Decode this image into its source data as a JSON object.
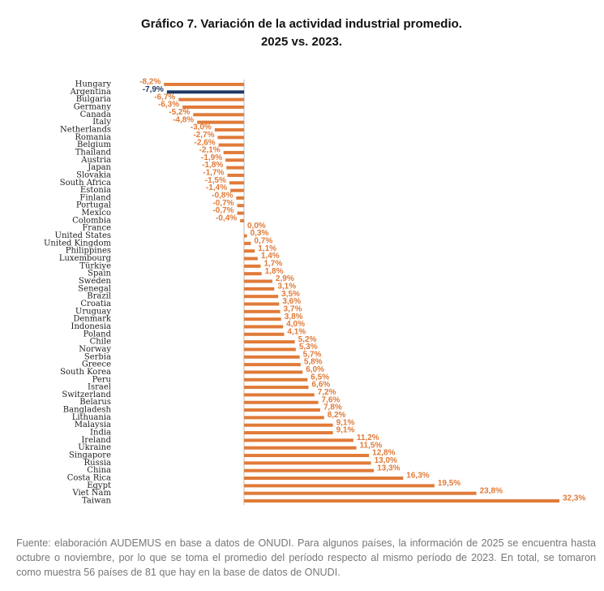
{
  "chart_data": {
    "type": "hbar",
    "title": "Gráfico 7. Variación de la actividad industrial promedio.",
    "subtitle": "2025 vs. 2023.",
    "categories": [
      "Hungary",
      "Argentina",
      "Bulgaria",
      "Germany",
      "Canada",
      "Italy",
      "Netherlands",
      "Romania",
      "Belgium",
      "Thailand",
      "Austria",
      "Japan",
      "Slovakia",
      "South Africa",
      "Estonia",
      "Finland",
      "Portugal",
      "Mexico",
      "Colombia",
      "France",
      "United States",
      "United Kingdom",
      "Philippines",
      "Luxembourg",
      "Türkiye",
      "Spain",
      "Sweden",
      "Senegal",
      "Brazil",
      "Croatia",
      "Uruguay",
      "Denmark",
      "Indonesia",
      "Poland",
      "Chile",
      "Norway",
      "Serbia",
      "Greece",
      "South Korea",
      "Peru",
      "Israel",
      "Switzerland",
      "Belarus",
      "Bangladesh",
      "Lithuania",
      "Malaysia",
      "India",
      "Ireland",
      "Ukraine",
      "Singapore",
      "Russia",
      "China",
      "Costa Rica",
      "Egypt",
      "Viet Nam",
      "Taiwan"
    ],
    "values": [
      -8.2,
      -7.9,
      -6.7,
      -6.3,
      -5.2,
      -4.8,
      -3.0,
      -2.7,
      -2.6,
      -2.1,
      -1.9,
      -1.8,
      -1.7,
      -1.5,
      -1.4,
      -0.8,
      -0.7,
      -0.7,
      -0.4,
      0.0,
      0.3,
      0.7,
      1.1,
      1.4,
      1.7,
      1.8,
      2.9,
      3.1,
      3.5,
      3.6,
      3.7,
      3.8,
      4.0,
      4.1,
      5.2,
      5.3,
      5.7,
      5.8,
      6.0,
      6.5,
      6.6,
      7.2,
      7.6,
      7.8,
      8.2,
      9.1,
      9.1,
      11.2,
      11.5,
      12.8,
      13.0,
      13.3,
      16.3,
      19.5,
      23.8,
      32.3
    ],
    "value_labels": [
      "-8,2%",
      "-7,9%",
      "-6,7%",
      "-6,3%",
      "-5,2%",
      "-4,8%",
      "-3,0%",
      "-2,7%",
      "-2,6%",
      "-2,1%",
      "-1,9%",
      "-1,8%",
      "-1,7%",
      "-1,5%",
      "-1,4%",
      "-0,8%",
      "-0,7%",
      "-0,7%",
      "-0,4%",
      "0,0%",
      "0,3%",
      "0,7%",
      "1,1%",
      "1,4%",
      "1,7%",
      "1,8%",
      "2,9%",
      "3,1%",
      "3,5%",
      "3,6%",
      "3,7%",
      "3,8%",
      "4,0%",
      "4,1%",
      "5,2%",
      "5,3%",
      "5,7%",
      "5,8%",
      "6,0%",
      "6,5%",
      "6,6%",
      "7,2%",
      "7,6%",
      "7,8%",
      "8,2%",
      "9,1%",
      "9,1%",
      "11,2%",
      "11,5%",
      "12,8%",
      "13,0%",
      "13,3%",
      "16,3%",
      "19,5%",
      "23,8%",
      "32,3%"
    ],
    "color": "#e07b39",
    "highlight": {
      "category": "Argentina",
      "color": "#1f3864"
    },
    "source": "Fuente: elaboración AUDEMUS en base a datos de ONUDI. Para algunos países, la información de 2025 se encuentra hasta octubre o noviembre, por lo que se toma el promedio del período respecto al mismo período de 2023. En total, se tomaron como muestra 56 países de 81 que hay en la base de datos de ONUDI."
  }
}
